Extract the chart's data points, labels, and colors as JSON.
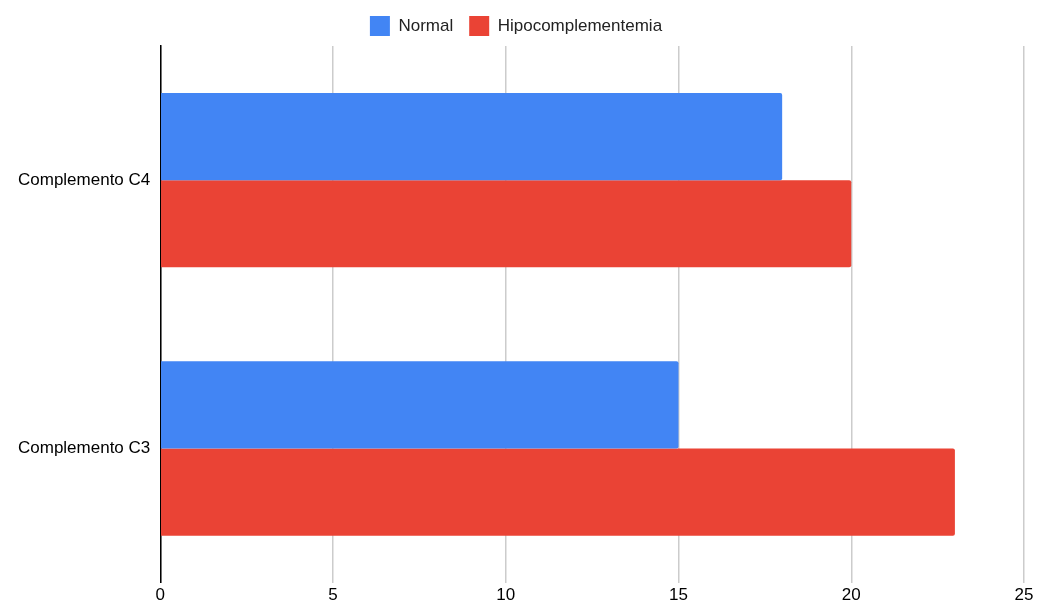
{
  "chart_data": {
    "type": "bar",
    "orientation": "horizontal",
    "categories": [
      "Complemento C4",
      "Complemento C3"
    ],
    "series": [
      {
        "name": "Normal",
        "color": "#4285f4",
        "values": [
          18,
          15
        ]
      },
      {
        "name": "Hipocomplementemia",
        "color": "#ea4335",
        "values": [
          20,
          23
        ]
      }
    ],
    "xlim": [
      0,
      25
    ],
    "xticks": [
      0,
      5,
      10,
      15,
      20,
      25
    ],
    "grid": "x",
    "legend": "top"
  }
}
